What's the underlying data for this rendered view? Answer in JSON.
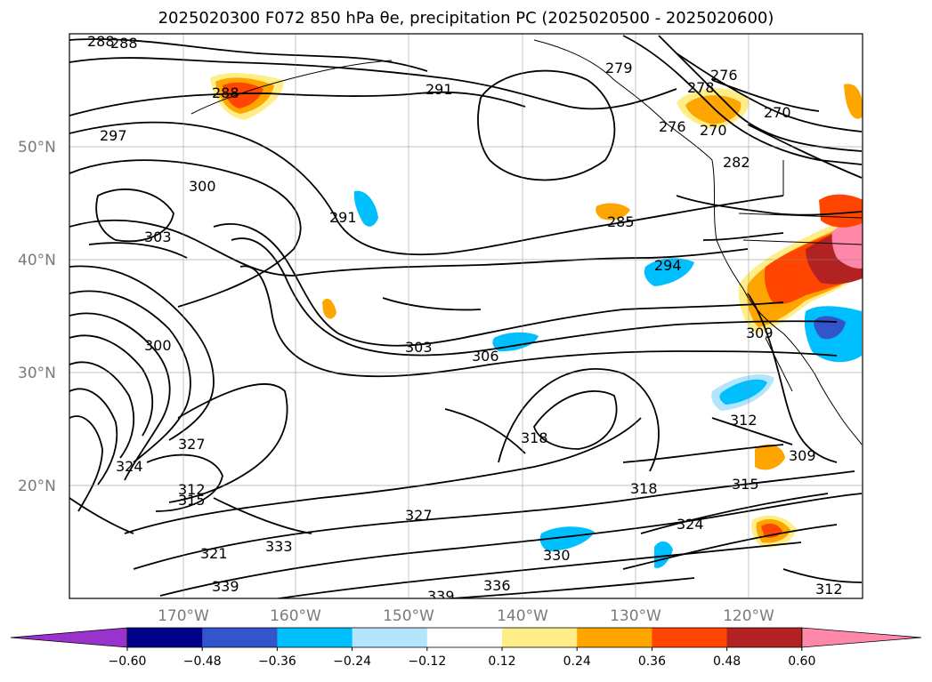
{
  "title": "2025020300 F072 850 hPa θe, precipitation PC (2025020500 - 2025020600)",
  "lat_labels": [
    "50°N",
    "40°N",
    "30°N",
    "20°N"
  ],
  "lon_labels": [
    "170°W",
    "160°W",
    "150°W",
    "140°W",
    "130°W",
    "120°W"
  ],
  "contour_labels": [
    "288",
    "288",
    "291",
    "297",
    "300",
    "303",
    "291",
    "300",
    "303",
    "306",
    "294",
    "285",
    "288",
    "279",
    "276",
    "278",
    "270",
    "270",
    "276",
    "282",
    "327",
    "324",
    "312",
    "315",
    "321",
    "333",
    "339",
    "327",
    "339",
    "336",
    "330",
    "318",
    "324",
    "318",
    "315",
    "312",
    "309",
    "309",
    "312"
  ],
  "colorbar": {
    "colors": [
      "#9933cc",
      "#00008b",
      "#3355cc",
      "#00bfff",
      "#b3e5fc",
      "#ffffff",
      "#ffee88",
      "#ffa500",
      "#ff4500",
      "#b22222",
      "#ff88aa"
    ],
    "tick_labels": [
      "−0.60",
      "−0.48",
      "−0.36",
      "−0.24",
      "−0.12",
      "0.12",
      "0.24",
      "0.36",
      "0.48",
      "0.60"
    ]
  }
}
